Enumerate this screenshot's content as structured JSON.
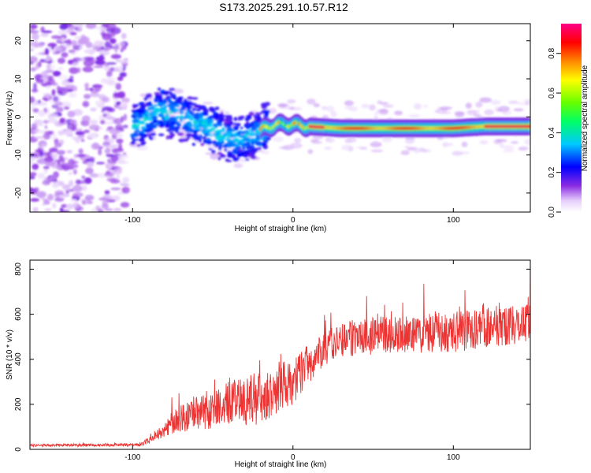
{
  "title": "S173.2025.291.10.57.R12",
  "chart_data": [
    {
      "type": "heatmap",
      "name": "spectrogram",
      "xlabel": "Height of straight line (km)",
      "ylabel": "Frequency (Hz)",
      "xlim": [
        -164,
        148
      ],
      "ylim": [
        -25,
        24.5
      ],
      "xticks": [
        -100,
        0,
        100
      ],
      "yticks": [
        -20,
        -10,
        0,
        10,
        20
      ],
      "colorbar": {
        "label": "Normalized spectral amplitude",
        "range": [
          0,
          0.95
        ],
        "ticks": [
          0.0,
          0.2,
          0.4,
          0.6,
          0.8
        ]
      },
      "ridge": {
        "description": "dominant frequency vs height",
        "points": [
          {
            "x": -100,
            "y": -2.5
          },
          {
            "x": -92,
            "y": -1
          },
          {
            "x": -85,
            "y": 1.5
          },
          {
            "x": -75,
            "y": 1
          },
          {
            "x": -65,
            "y": -1
          },
          {
            "x": -55,
            "y": -2
          },
          {
            "x": -45,
            "y": -5
          },
          {
            "x": -35,
            "y": -6
          },
          {
            "x": -25,
            "y": -5
          },
          {
            "x": -18,
            "y": -3
          },
          {
            "x": -10,
            "y": -2
          },
          {
            "x": 0,
            "y": -2
          },
          {
            "x": 10,
            "y": -2.5
          },
          {
            "x": 30,
            "y": -3
          },
          {
            "x": 60,
            "y": -3
          },
          {
            "x": 100,
            "y": -3
          },
          {
            "x": 120,
            "y": -2.5
          },
          {
            "x": 148,
            "y": -2.5
          }
        ]
      }
    },
    {
      "type": "line",
      "name": "snr",
      "xlabel": "Height of straight line (km)",
      "ylabel": "SNR (10 * v/v)",
      "xlim": [
        -164,
        148
      ],
      "ylim": [
        0,
        840
      ],
      "xticks": [
        -100,
        0,
        100
      ],
      "yticks": [
        0,
        200,
        400,
        600,
        800
      ],
      "color": "#ee3333",
      "trend": [
        {
          "x": -164,
          "y": 18,
          "spread": 12
        },
        {
          "x": -95,
          "y": 20,
          "spread": 14
        },
        {
          "x": -85,
          "y": 60,
          "spread": 40
        },
        {
          "x": -75,
          "y": 120,
          "spread": 100
        },
        {
          "x": -60,
          "y": 170,
          "spread": 170
        },
        {
          "x": -40,
          "y": 200,
          "spread": 200
        },
        {
          "x": -20,
          "y": 230,
          "spread": 240
        },
        {
          "x": 0,
          "y": 300,
          "spread": 210
        },
        {
          "x": 15,
          "y": 420,
          "spread": 160
        },
        {
          "x": 30,
          "y": 490,
          "spread": 160
        },
        {
          "x": 60,
          "y": 510,
          "spread": 170
        },
        {
          "x": 100,
          "y": 520,
          "spread": 180
        },
        {
          "x": 148,
          "y": 560,
          "spread": 170
        }
      ]
    }
  ]
}
